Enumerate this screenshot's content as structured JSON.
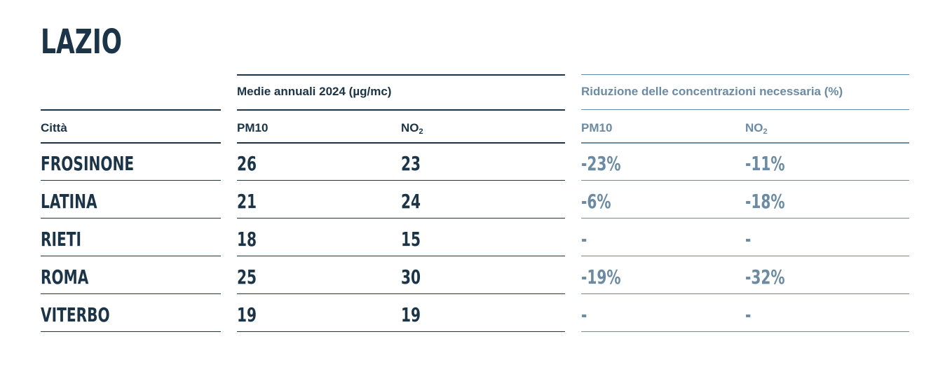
{
  "region_title": "LAZIO",
  "group_headers": {
    "annual_means": "Medie annuali 2024 (µg/mc)",
    "reduction_needed": "Riduzione delle concentrazioni necessaria (%)"
  },
  "column_headers": {
    "city": "Città",
    "pm10_mean": "PM10",
    "no2_mean_base": "NO",
    "no2_mean_sub": "2",
    "pm10_reduction": "PM10",
    "no2_reduction_base": "NO",
    "no2_reduction_sub": "2"
  },
  "rows": [
    {
      "city": "FROSINONE",
      "pm10": "26",
      "no2": "23",
      "pm10_reduction": "-23%",
      "no2_reduction": "-11%"
    },
    {
      "city": "LATINA",
      "pm10": "21",
      "no2": "24",
      "pm10_reduction": "-6%",
      "no2_reduction": "-18%"
    },
    {
      "city": "RIETI",
      "pm10": "18",
      "no2": "15",
      "pm10_reduction": "-",
      "no2_reduction": "-"
    },
    {
      "city": "ROMA",
      "pm10": "25",
      "no2": "30",
      "pm10_reduction": "-19%",
      "no2_reduction": "-32%"
    },
    {
      "city": "VITERBO",
      "pm10": "19",
      "no2": "19",
      "pm10_reduction": "-",
      "no2_reduction": "-"
    }
  ],
  "colors": {
    "dark_navy": "#1b3447",
    "steel_blue": "#6b8ba4"
  }
}
